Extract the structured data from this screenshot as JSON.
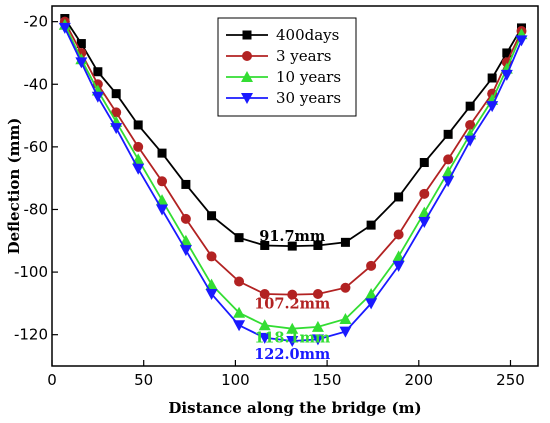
{
  "chart_data": {
    "type": "line",
    "xlabel": "Distance along the bridge (m)",
    "ylabel": "Deflection (mm)",
    "xlim": [
      0,
      265
    ],
    "ylim": [
      -130,
      -15
    ],
    "xticks": [
      0,
      50,
      100,
      150,
      200,
      250
    ],
    "yticks": [
      -20,
      -40,
      -60,
      -80,
      -100,
      -120
    ],
    "grid": false,
    "legend_position": "top-center",
    "x": [
      7,
      16,
      25,
      35,
      47,
      60,
      73,
      87,
      102,
      116,
      131,
      145,
      160,
      174,
      189,
      203,
      216,
      228,
      240,
      248,
      256
    ],
    "series": [
      {
        "name": "400days",
        "color": "#000000",
        "marker": "square",
        "values": [
          -19,
          -27,
          -36,
          -43,
          -53,
          -62,
          -72,
          -82,
          -89,
          -91.5,
          -91.7,
          -91.5,
          -90.5,
          -85,
          -76,
          -65,
          -56,
          -47,
          -38,
          -30,
          -22
        ]
      },
      {
        "name": "3 years",
        "color": "#b22222",
        "marker": "circle",
        "values": [
          -20,
          -30,
          -40,
          -49,
          -60,
          -71,
          -83,
          -95,
          -103,
          -107,
          -107.2,
          -107,
          -105,
          -98,
          -88,
          -75,
          -64,
          -53,
          -43,
          -33,
          -23
        ]
      },
      {
        "name": "10 years",
        "color": "#33dd33",
        "marker": "triangle-up",
        "values": [
          -21,
          -32,
          -42,
          -52,
          -64,
          -77,
          -90,
          -104,
          -113,
          -117,
          -118.1,
          -117.5,
          -115,
          -107,
          -95,
          -81,
          -68,
          -56,
          -45,
          -35,
          -24
        ]
      },
      {
        "name": "30 years",
        "color": "#1a1aff",
        "marker": "triangle-down",
        "values": [
          -22,
          -33,
          -44,
          -54,
          -67,
          -80,
          -93,
          -107,
          -117,
          -121,
          -122.0,
          -121.5,
          -119,
          -110,
          -98,
          -84,
          -71,
          -58,
          -47,
          -37,
          -26
        ]
      }
    ],
    "annotations": [
      {
        "text": "91.7mm",
        "x": 131,
        "y": -91.7,
        "color": "#000000"
      },
      {
        "text": "107.2mm",
        "x": 131,
        "y": -107.2,
        "color": "#b22222"
      },
      {
        "text": "118.1mm",
        "x": 131,
        "y": -118.1,
        "color": "#33dd33"
      },
      {
        "text": "122.0mm",
        "x": 131,
        "y": -122.0,
        "color": "#1a1aff"
      }
    ]
  }
}
